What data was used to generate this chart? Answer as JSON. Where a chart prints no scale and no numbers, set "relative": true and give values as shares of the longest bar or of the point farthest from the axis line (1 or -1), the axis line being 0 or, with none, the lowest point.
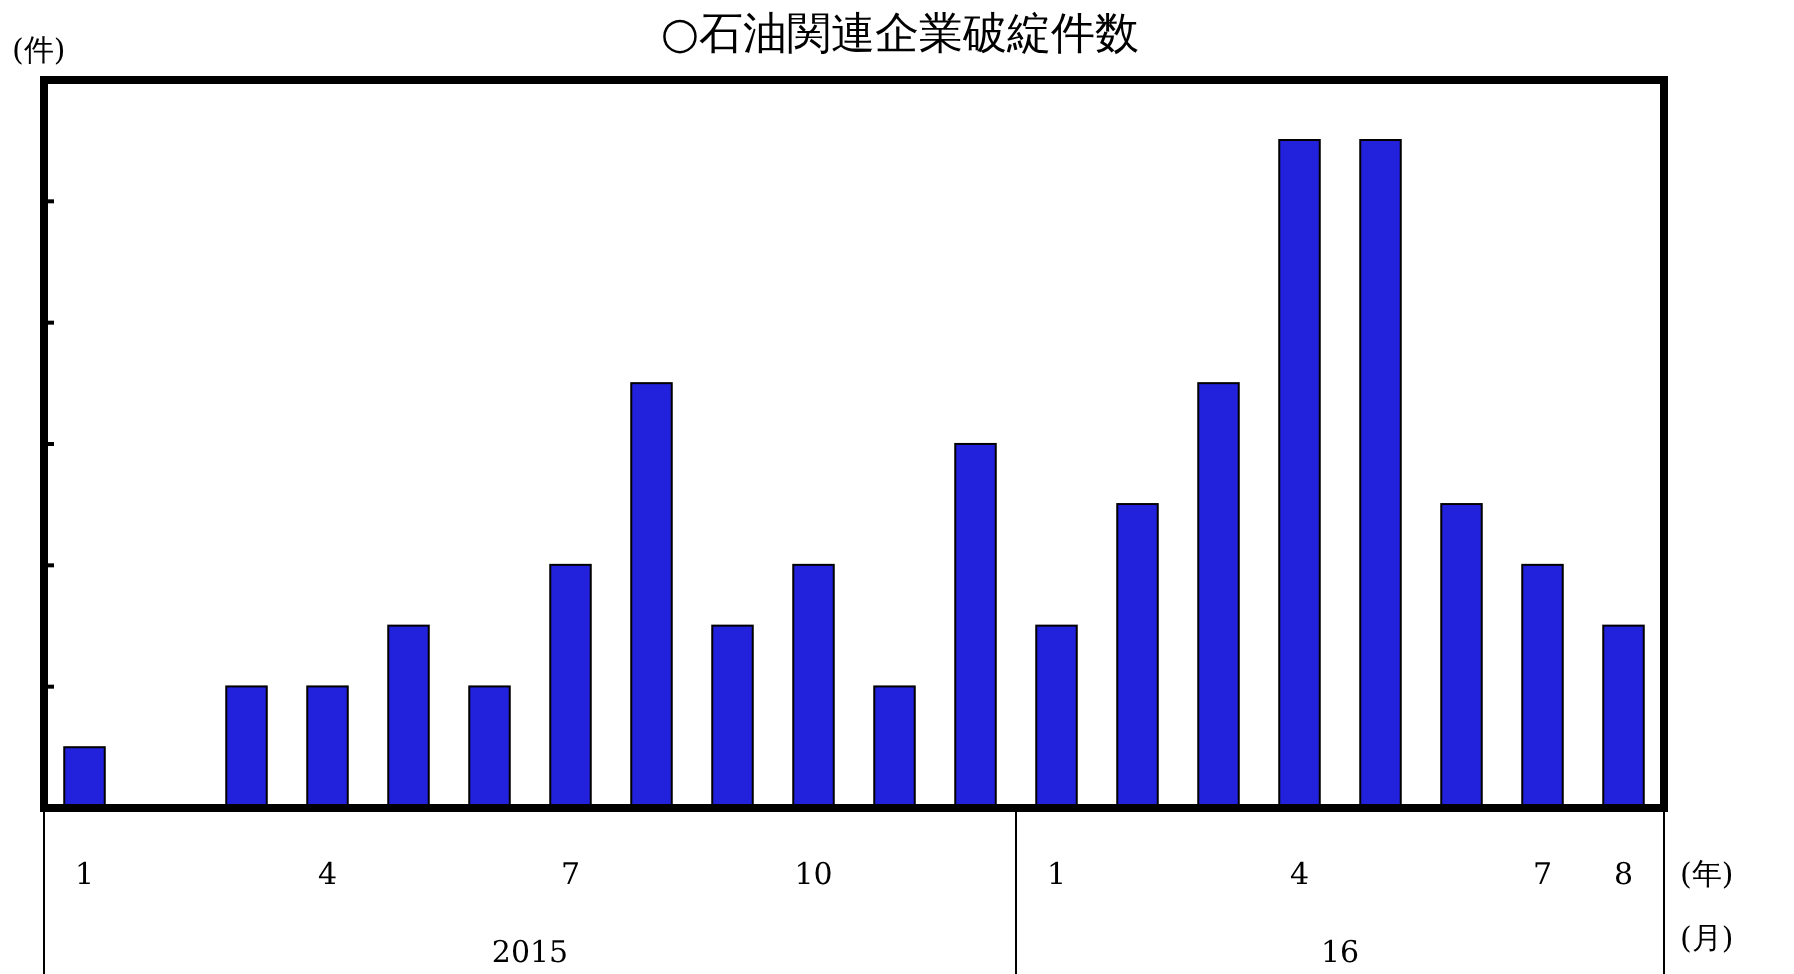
{
  "chart_data": {
    "type": "bar",
    "title": "○石油関連企業破綻件数",
    "ylabel": "(件)",
    "xlabel": "(年)",
    "relative": true,
    "categories": [
      "1",
      null,
      null,
      "4",
      null,
      null,
      "7",
      null,
      null,
      "10",
      null,
      null,
      "1",
      null,
      null,
      "4",
      null,
      null,
      "7",
      "8"
    ],
    "values": [
      0.091,
      0,
      0.182,
      0.182,
      0.273,
      0.182,
      0.364,
      0.636,
      0.273,
      0.364,
      0.182,
      0.545,
      0.273,
      0.455,
      0.636,
      1,
      1,
      0.455,
      0.364,
      0.273
    ],
    "color": "#2222dd",
    "annotations": [
      "(月)",
      "2015",
      "16"
    ]
  }
}
